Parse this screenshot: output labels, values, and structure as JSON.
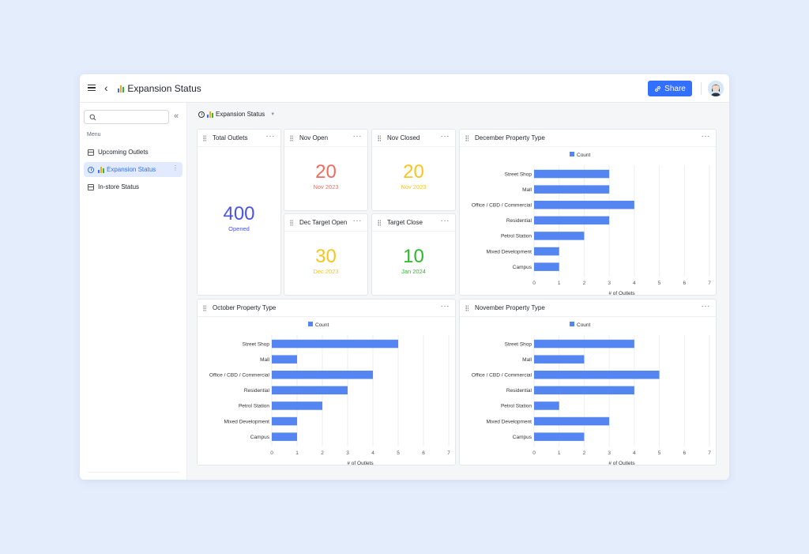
{
  "app": {
    "title": "Expansion Status",
    "share_label": "Share"
  },
  "sidebar": {
    "menu_label": "Menu",
    "items": [
      {
        "label": "Upcoming Outlets"
      },
      {
        "label": "Expansion Status"
      },
      {
        "label": "In-store Status"
      }
    ]
  },
  "dashboard": {
    "title": "Expansion Status"
  },
  "kpis": {
    "total": {
      "title": "Total Outlets",
      "value": "400",
      "sub": "Opened",
      "color": "#4954e6"
    },
    "nov_open": {
      "title": "Nov Open",
      "value": "20",
      "sub": "Nov 2023",
      "color": "#f06b5e"
    },
    "nov_closed": {
      "title": "Nov Closed",
      "value": "20",
      "sub": "Nov 2023",
      "color": "#f7c51e"
    },
    "dec_target_open": {
      "title": "Dec Target Open",
      "value": "30",
      "sub": "Dec 2023",
      "color": "#f7c51e"
    },
    "target_close": {
      "title": "Target Close",
      "value": "10",
      "sub": "Jan 2024",
      "color": "#2fb82c"
    }
  },
  "chart_data": [
    {
      "type": "bar",
      "title": "December Property Type",
      "legend": "Count",
      "xlabel": "# of Outlets",
      "categories": [
        "Street Shop",
        "Mall",
        "Office / CBD / Commercial",
        "Residential",
        "Petrol Station",
        "Mixed Development",
        "Campus"
      ],
      "values": [
        3,
        3,
        4,
        3,
        2,
        1,
        1
      ],
      "xticks": [
        0,
        1,
        2,
        3,
        4,
        5,
        6,
        7
      ],
      "xlim": [
        0,
        7
      ]
    },
    {
      "type": "bar",
      "title": "October Property Type",
      "legend": "Count",
      "xlabel": "# of Outlets",
      "categories": [
        "Street Shop",
        "Mall",
        "Office / CBD / Commercial",
        "Residential",
        "Petrol Station",
        "Mixed Development",
        "Campus"
      ],
      "values": [
        5,
        1,
        4,
        3,
        2,
        1,
        1
      ],
      "xticks": [
        0,
        1,
        2,
        3,
        4,
        5,
        6,
        7
      ],
      "xlim": [
        0,
        7
      ]
    },
    {
      "type": "bar",
      "title": "November Property Type",
      "legend": "Count",
      "xlabel": "# of Outlets",
      "categories": [
        "Street Shop",
        "Mall",
        "Office / CBD / Commercial",
        "Residential",
        "Petrol Station",
        "Mixed Development",
        "Campus"
      ],
      "values": [
        4,
        2,
        5,
        4,
        1,
        3,
        2
      ],
      "xticks": [
        0,
        1,
        2,
        3,
        4,
        5,
        6,
        7
      ],
      "xlim": [
        0,
        7
      ]
    }
  ],
  "colors": {
    "accent": "#3370ff",
    "bar": "#5585f0"
  }
}
